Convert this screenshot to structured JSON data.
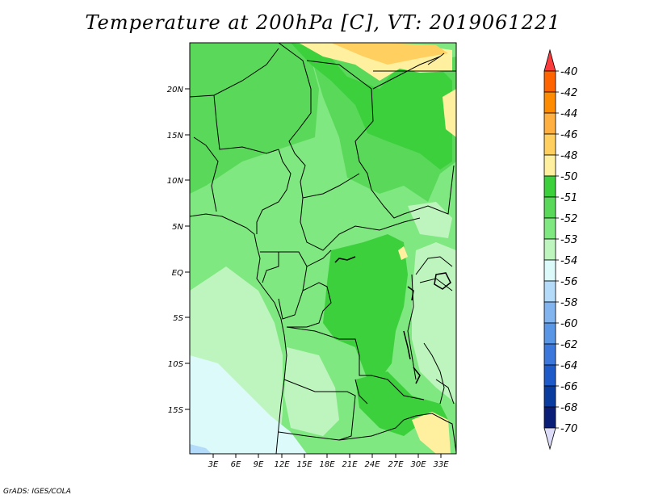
{
  "title": "Temperature at 200hPa [C], VT: 2019061221",
  "footer": "GrADS: IGES/COLA",
  "map": {
    "lat_labels": [
      "20N",
      "15N",
      "10N",
      "5N",
      "EQ",
      "5S",
      "10S",
      "15S"
    ],
    "lon_labels": [
      "3E",
      "6E",
      "9E",
      "12E",
      "15E",
      "18E",
      "21E",
      "24E",
      "27E",
      "30E",
      "33E"
    ]
  },
  "colorbar": {
    "labels": [
      "-40",
      "-42",
      "-44",
      "-46",
      "-48",
      "-50",
      "-51",
      "-52",
      "-53",
      "-54",
      "-56",
      "-58",
      "-60",
      "-62",
      "-64",
      "-66",
      "-68",
      "-70"
    ],
    "colors": [
      "#fa3c3c",
      "#ff6400",
      "#ff8c00",
      "#ffb040",
      "#ffd060",
      "#fff0a0",
      "#3cd03c",
      "#5ad85a",
      "#80e880",
      "#bef5be",
      "#dcfafa",
      "#b4dcfa",
      "#82b4f0",
      "#5a96e6",
      "#3c78dc",
      "#1e5ac8",
      "#0a3ca0",
      "#0a1e78",
      "#dcdcf8"
    ]
  }
}
